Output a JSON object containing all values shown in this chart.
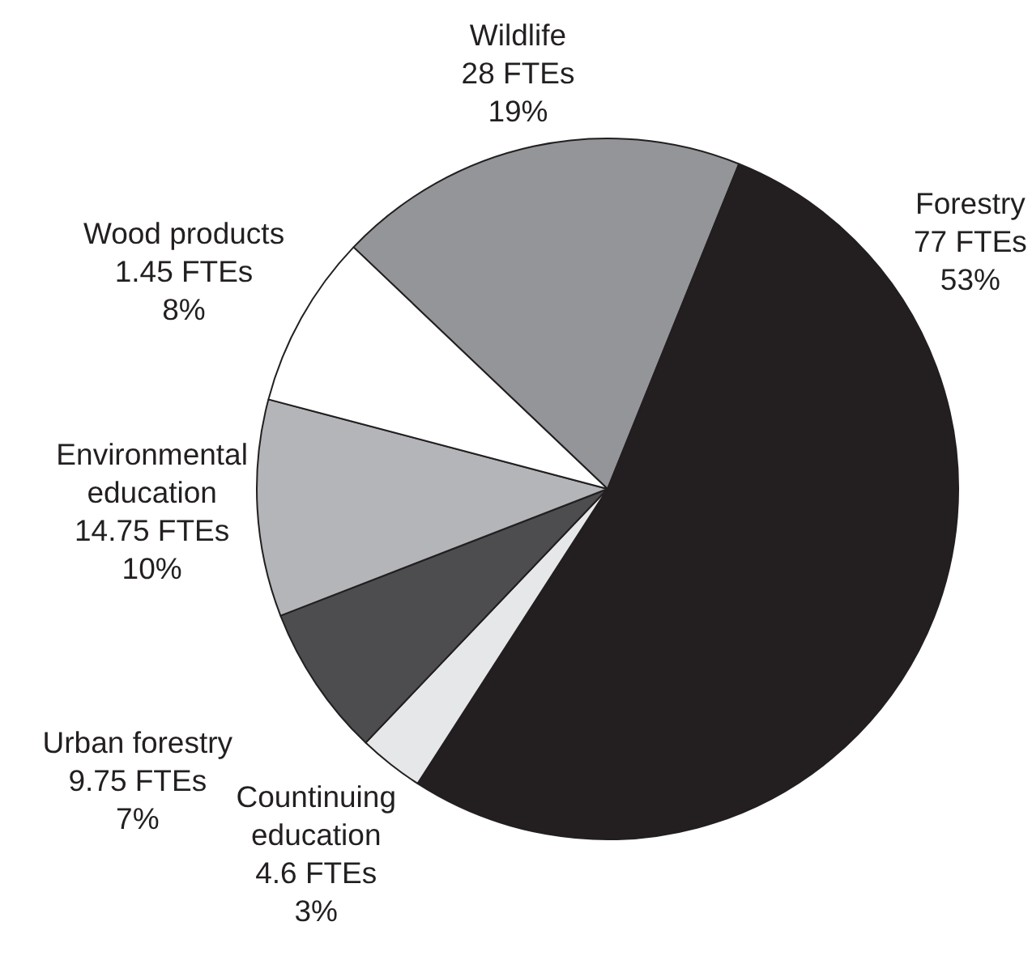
{
  "chart_data": {
    "type": "pie",
    "categories": [
      "Wildlife",
      "Forestry",
      "Countinuing education",
      "Urban forestry",
      "Environmental education",
      "Wood products"
    ],
    "values": [
      19,
      53,
      3,
      7,
      10,
      8
    ],
    "colors": [
      "#939598",
      "#231f20",
      "#e6e7e8",
      "#4d4d4f",
      "#b4b5b8",
      "#ffffff"
    ],
    "value_labels": [
      "28 FTEs\n19%",
      "77 FTEs\n53%",
      "4.6 FTEs\n3%",
      "9.75 FTEs\n7%",
      "14.75 FTEs\n10%",
      "1.45 FTEs\n8%"
    ]
  }
}
